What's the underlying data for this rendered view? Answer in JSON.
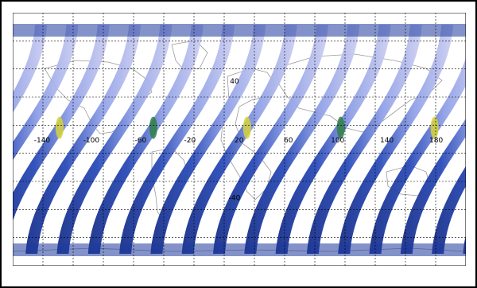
{
  "map": {
    "projection": "cylindrical",
    "colors": {
      "swath_primary": "#1d3a9c",
      "swath_light": "#8fa0e6",
      "swath_cloud": "#d6d2f0",
      "swath_green": "#2f7f45",
      "swath_yellow": "#d6d23a",
      "coastline": "#9a9a9a",
      "grid": "#000000",
      "background": "#ffffff"
    },
    "longitude_ticks": [
      "-140",
      "-100",
      "-60",
      "-20",
      "20",
      "60",
      "100",
      "140",
      "180"
    ],
    "latitude_ticks": [
      "40",
      "-40"
    ],
    "swath_count": 16,
    "icon": "satellite-swath-icon"
  }
}
